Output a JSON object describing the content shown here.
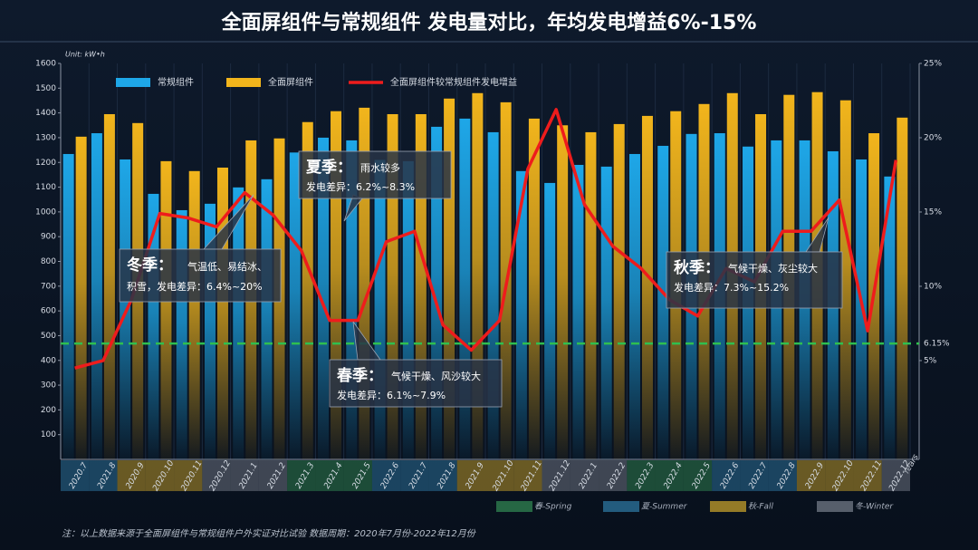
{
  "chart_data": {
    "type": "bar",
    "title": "全面屏组件与常规组件 发电量对比，年均发电增益6%-15%",
    "unit_label": "Unit:  kW•h",
    "x_label": "Years",
    "categories": [
      "2020.7",
      "2021.8",
      "2020.9",
      "2020.10",
      "2020.11",
      "2020.12",
      "2021.1",
      "2021.2",
      "2021.3",
      "2021.4",
      "2021.5",
      "2022.6",
      "2021.7",
      "2021.8",
      "2021.9",
      "2021.10",
      "2021.11",
      "2021.12",
      "2022.1",
      "2022.2",
      "2022.3",
      "2022.4",
      "2022.5",
      "2022.6",
      "2022.7",
      "2022.8",
      "2022.9",
      "2022.10",
      "2022.11",
      "2022.12"
    ],
    "category_colors": [
      "#2a6f97",
      "#2a6f97",
      "#b8962a",
      "#b8962a",
      "#b8962a",
      "#6b7380",
      "#6b7380",
      "#6b7380",
      "#2e7d4f",
      "#2e7d4f",
      "#2e7d4f",
      "#2a6f97",
      "#2a6f97",
      "#2a6f97",
      "#b8962a",
      "#b8962a",
      "#b8962a",
      "#6b7380",
      "#6b7380",
      "#6b7380",
      "#2e7d4f",
      "#2e7d4f",
      "#2e7d4f",
      "#2a6f97",
      "#2a6f97",
      "#2a6f97",
      "#b8962a",
      "#b8962a",
      "#b8962a",
      "#6b7380"
    ],
    "series": [
      {
        "name": "常规组件",
        "color": "#1ea7e8",
        "values": [
          1234,
          1318,
          1212,
          1073,
          1007,
          1033,
          1099,
          1132,
          1240,
          1300,
          1289,
          1210,
          1205,
          1344,
          1377,
          1322,
          1165,
          1117,
          1190,
          1183,
          1234,
          1267,
          1315,
          1318,
          1264,
          1289,
          1289,
          1245,
          1212,
          1143
        ]
      },
      {
        "name": "全面屏组件",
        "color": "#f2b51c",
        "values": [
          1304,
          1395,
          1359,
          1205,
          1165,
          1179,
          1289,
          1297,
          1363,
          1407,
          1421,
          1395,
          1395,
          1458,
          1480,
          1443,
          1377,
          1350,
          1322,
          1355,
          1388,
          1407,
          1436,
          1480,
          1395,
          1473,
          1484,
          1451,
          1318,
          1381
        ]
      },
      {
        "name": "全面屏组件较常规组件发电增益",
        "color": "#ee1c1c",
        "axis": "y2",
        "type": "line",
        "values": [
          4.5,
          5.0,
          9.1,
          14.9,
          14.6,
          14.0,
          16.3,
          14.8,
          12.4,
          7.7,
          7.7,
          13.0,
          13.7,
          7.4,
          5.7,
          7.7,
          17.9,
          21.9,
          15.5,
          12.7,
          11.2,
          9.1,
          8.0,
          11.2,
          10.3,
          13.7,
          13.7,
          15.8,
          7.0,
          18.5
        ]
      }
    ],
    "ylim": [
      0,
      1600
    ],
    "yticks": [
      100,
      200,
      300,
      400,
      500,
      600,
      700,
      800,
      900,
      1000,
      1100,
      1200,
      1300,
      1400,
      1500,
      1600
    ],
    "y2lim": [
      -1.65,
      25
    ],
    "y2ticks": [
      {
        "value": 5,
        "label": "5%"
      },
      {
        "value": 10,
        "label": "10%"
      },
      {
        "value": 15,
        "label": "15%"
      },
      {
        "value": 20,
        "label": "20%"
      },
      {
        "value": 25,
        "label": "25%"
      }
    ],
    "reference_line": {
      "value": 6.15,
      "label": "6.15%",
      "axis": "y2",
      "color": "#2fbf4f"
    },
    "seasons": [
      {
        "name": "春-Spring",
        "color": "#2e7d4f"
      },
      {
        "name": "夏-Summer",
        "color": "#2a6f97"
      },
      {
        "name": "秋-Fall",
        "color": "#b8962a"
      },
      {
        "name": "冬-Winter",
        "color": "#6b7380"
      }
    ],
    "annotations": [
      {
        "title": "冬季：",
        "lines": [
          "气温低、易结冰、",
          "积雪，发电差异：6.4%~20%"
        ]
      },
      {
        "title": "夏季：",
        "lines": [
          "雨水较多",
          "发电差异：6.2%~8.3%"
        ]
      },
      {
        "title": "春季：",
        "lines": [
          "气候干燥、风沙较大",
          "发电差异：6.1%~7.9%"
        ]
      },
      {
        "title": "秋季：",
        "lines": [
          "气候干燥、灰尘较大",
          "发电差异：7.3%~15.2%"
        ]
      }
    ],
    "note": "注：以上数据来源于全面屏组件与常规组件户外实证对比试验    数据周期：2020年7月份-2022年12月份"
  }
}
